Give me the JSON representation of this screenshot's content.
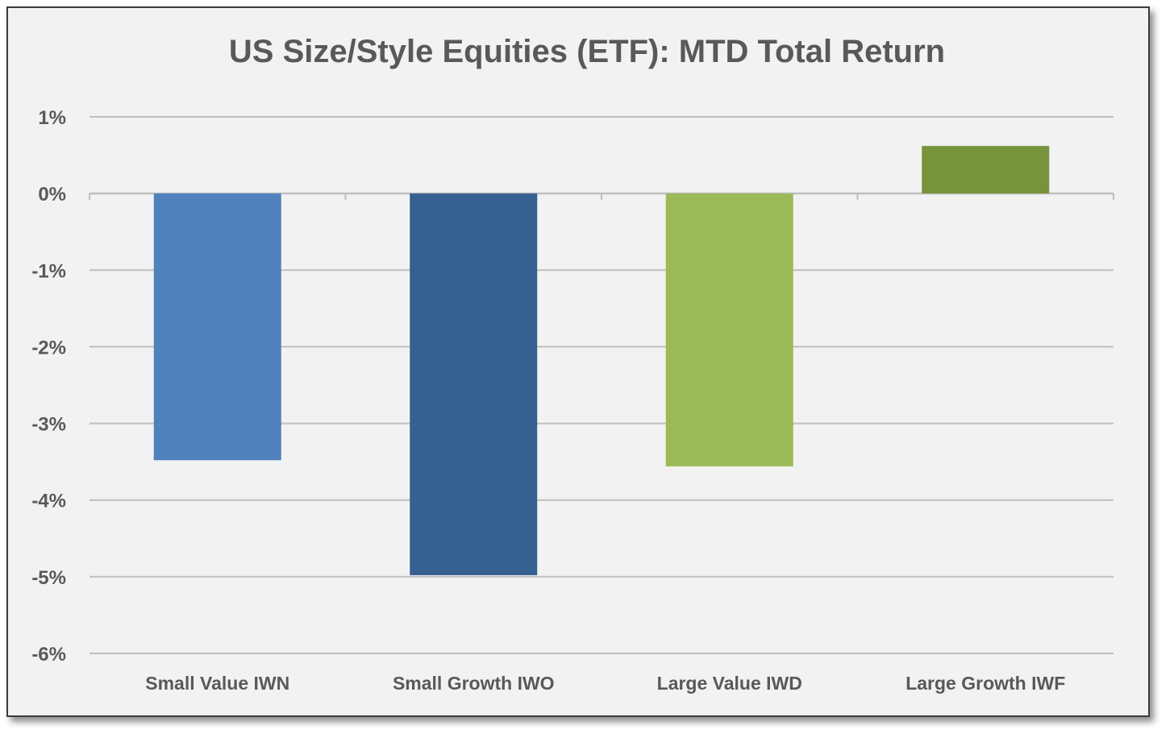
{
  "chart_data": {
    "type": "bar",
    "title": "US Size/Style Equities (ETF): MTD Total Return",
    "xlabel": "",
    "ylabel": "",
    "ylim": [
      -6,
      1
    ],
    "yticks": [
      1,
      0,
      -1,
      -2,
      -3,
      -4,
      -5,
      -6
    ],
    "ytick_labels": [
      "1%",
      "0%",
      "-1%",
      "-2%",
      "-3%",
      "-4%",
      "-5%",
      "-6%"
    ],
    "grid": true,
    "legend": "none",
    "categories": [
      "Small Value IWN",
      "Small Growth IWO",
      "Large Value IWD",
      "Large Growth IWF"
    ],
    "values": [
      -3.48,
      -4.98,
      -3.56,
      0.62
    ],
    "colors": [
      "#4f81bd",
      "#376092",
      "#9bbb59",
      "#77933c"
    ]
  },
  "style": {
    "background": "#f2f2f2",
    "gridline_color": "#bfbfbf",
    "text_color": "#595959"
  }
}
